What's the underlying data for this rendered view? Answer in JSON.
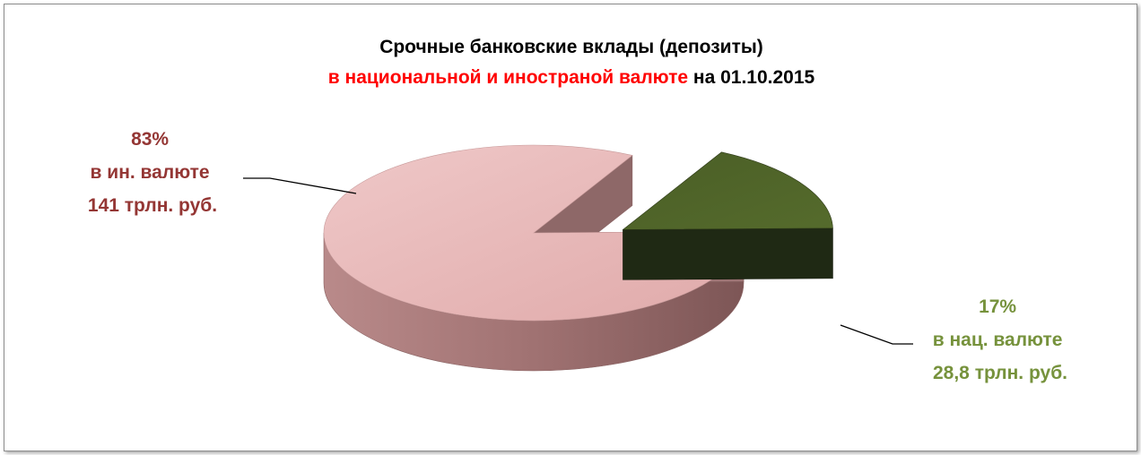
{
  "chart_data": {
    "type": "pie",
    "title_line1": "Срочные банковские вклады (депозиты)",
    "title_line2_highlight": "в национальной и иностраной валюте",
    "title_line2_rest": " на 01.10.2015",
    "slices": [
      {
        "percent_label": "83%",
        "name": "в ин. валюте",
        "amount_label": "141 трлн. руб.",
        "value": 141,
        "percent": 83,
        "color": "#e8b8b8",
        "label_color": "#943634"
      },
      {
        "percent_label": "17%",
        "name": "в нац. валюте",
        "amount_label": "28,8 трлн. руб.",
        "value": 28.8,
        "percent": 17,
        "color": "#4f6228",
        "label_color": "#76923c"
      }
    ]
  },
  "colors": {
    "title": "#000000",
    "title_highlight": "#ff0000",
    "frame_border": "#8c8c8c"
  }
}
